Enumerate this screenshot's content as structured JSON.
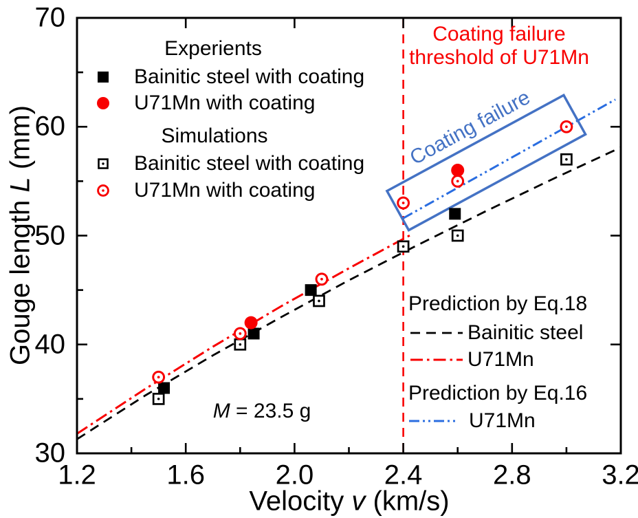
{
  "colors": {
    "black": "#000000",
    "red": "#f80000",
    "blue_line": "#2a6de0",
    "blue_box": "#4472c4",
    "background": "#ffffff"
  },
  "chart_data": {
    "type": "scatter",
    "xlabel": {
      "pre": "Velocity ",
      "it": "v",
      "post": " (km/s)"
    },
    "ylabel": {
      "pre": "Gouge length ",
      "it": "L",
      "post": " (mm)"
    },
    "xlim": [
      1.2,
      3.2
    ],
    "ylim": [
      30,
      70
    ],
    "x_tick_labels": [
      "1.2",
      "1.6",
      "2.0",
      "2.4",
      "2.8",
      "3.2"
    ],
    "x_minor_ticks": [
      1.4,
      1.8,
      2.2,
      2.6,
      3.0
    ],
    "y_tick_labels": [
      "30",
      "40",
      "50",
      "60",
      "70"
    ],
    "y_minor_ticks": [
      35,
      45,
      55,
      65
    ],
    "top_ticks": [
      1.6,
      2.0,
      2.4,
      2.8
    ],
    "right_ticks": [
      40,
      50,
      60
    ],
    "grid": false,
    "legend": {
      "experiments_header": "Experients",
      "simulations_header": "Simulations",
      "pred18_header": "Prediction by Eq.18",
      "pred16_header": "Prediction by Eq.16"
    },
    "series": [
      {
        "group": "Experiments",
        "label": "Bainitic steel with coating",
        "marker": "filled-square",
        "color_key": "black",
        "points": [
          [
            1.52,
            36
          ],
          [
            1.85,
            41
          ],
          [
            2.06,
            45
          ],
          [
            2.59,
            52
          ]
        ]
      },
      {
        "group": "Experiments",
        "label": "U71Mn with coating",
        "marker": "filled-circle",
        "color_key": "red",
        "points": [
          [
            1.84,
            42
          ],
          [
            2.6,
            56
          ]
        ]
      },
      {
        "group": "Simulations",
        "label": "Bainitic steel with coating",
        "marker": "open-square-dot",
        "color_key": "black",
        "points": [
          [
            1.5,
            35
          ],
          [
            1.8,
            40
          ],
          [
            2.09,
            44
          ],
          [
            2.4,
            49
          ],
          [
            2.6,
            50
          ],
          [
            3.0,
            57
          ]
        ]
      },
      {
        "group": "Simulations",
        "label": "U71Mn with coating",
        "marker": "open-circle-dot",
        "color_key": "red",
        "points": [
          [
            1.5,
            37
          ],
          [
            1.8,
            41
          ],
          [
            2.1,
            46
          ],
          [
            2.4,
            53
          ],
          [
            2.6,
            55
          ],
          [
            3.0,
            60
          ]
        ]
      }
    ],
    "lines": [
      {
        "equation": "Eq.18",
        "legend_label": "Bainitic steel",
        "style": "dash",
        "color_key": "black",
        "points": [
          [
            1.2,
            31.3
          ],
          [
            1.45,
            35.3
          ],
          [
            1.7,
            39.0
          ],
          [
            1.95,
            42.5
          ],
          [
            2.2,
            45.9
          ],
          [
            2.45,
            49.1
          ],
          [
            2.7,
            52.2
          ],
          [
            2.95,
            55.2
          ],
          [
            3.2,
            58.1
          ]
        ]
      },
      {
        "equation": "Eq.18",
        "legend_label": "U71Mn",
        "style": "dash-dot",
        "color_key": "red",
        "points": [
          [
            1.2,
            31.8
          ],
          [
            1.45,
            35.9
          ],
          [
            1.7,
            39.8
          ],
          [
            1.95,
            43.5
          ],
          [
            2.2,
            47.0
          ],
          [
            2.43,
            50.1
          ]
        ]
      },
      {
        "equation": "Eq.16",
        "legend_label": "U71Mn",
        "style": "dash-dot-dot",
        "color_key": "blue_line",
        "points": [
          [
            2.4,
            51.6
          ],
          [
            3.18,
            62.5
          ]
        ]
      }
    ],
    "vline": {
      "x": 2.4,
      "style": "dash",
      "color_key": "red",
      "label_line1": "Coating failure",
      "label_line2": "threshold of U71Mn"
    },
    "failure_box": {
      "label": "Coating failure",
      "color_key": "blue_box",
      "corners": [
        [
          2.34,
          54.1
        ],
        [
          2.99,
          62.9
        ],
        [
          3.07,
          59.3
        ],
        [
          2.42,
          50.5
        ]
      ],
      "label_rotation_deg": -28.5
    },
    "annotation_m": {
      "it": "M",
      "post": " = 23.5 g"
    }
  }
}
